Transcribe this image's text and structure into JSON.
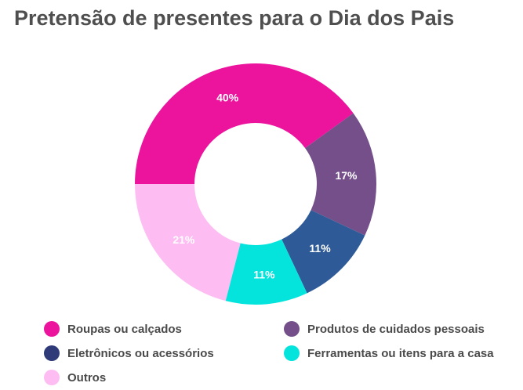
{
  "title": "Pretensão de presentes para o Dia dos Pais",
  "chart_data": {
    "type": "pie",
    "variant": "donut",
    "title": "Pretensão de presentes para o Dia dos Pais",
    "legend_position": "bottom",
    "slices": [
      {
        "label": "Roupas ou calçados",
        "value": 40,
        "display": "40%",
        "color": "#ec139d"
      },
      {
        "label": "Produtos de cuidados pessoais",
        "value": 17,
        "display": "17%",
        "color": "#744f8a"
      },
      {
        "label": "Eletrônicos ou acessórios",
        "value": 11,
        "display": "11%",
        "color": "#2e5b98"
      },
      {
        "label": "Ferramentas ou itens para a casa",
        "value": 11,
        "display": "11%",
        "color": "#05e4dc"
      },
      {
        "label": "Outros",
        "value": 21,
        "display": "21%",
        "color": "#fdbdf3"
      }
    ]
  },
  "legend": [
    {
      "label": "Roupas ou calçados",
      "color": "#ec139d"
    },
    {
      "label": "Produtos de cuidados pessoais",
      "color": "#744f8a"
    },
    {
      "label": "Eletrônicos ou acessórios",
      "color": "#2e3b78"
    },
    {
      "label": "Ferramentas ou itens para a casa",
      "color": "#05e4dc"
    },
    {
      "label": "Outros",
      "color": "#fdbdf3"
    }
  ]
}
